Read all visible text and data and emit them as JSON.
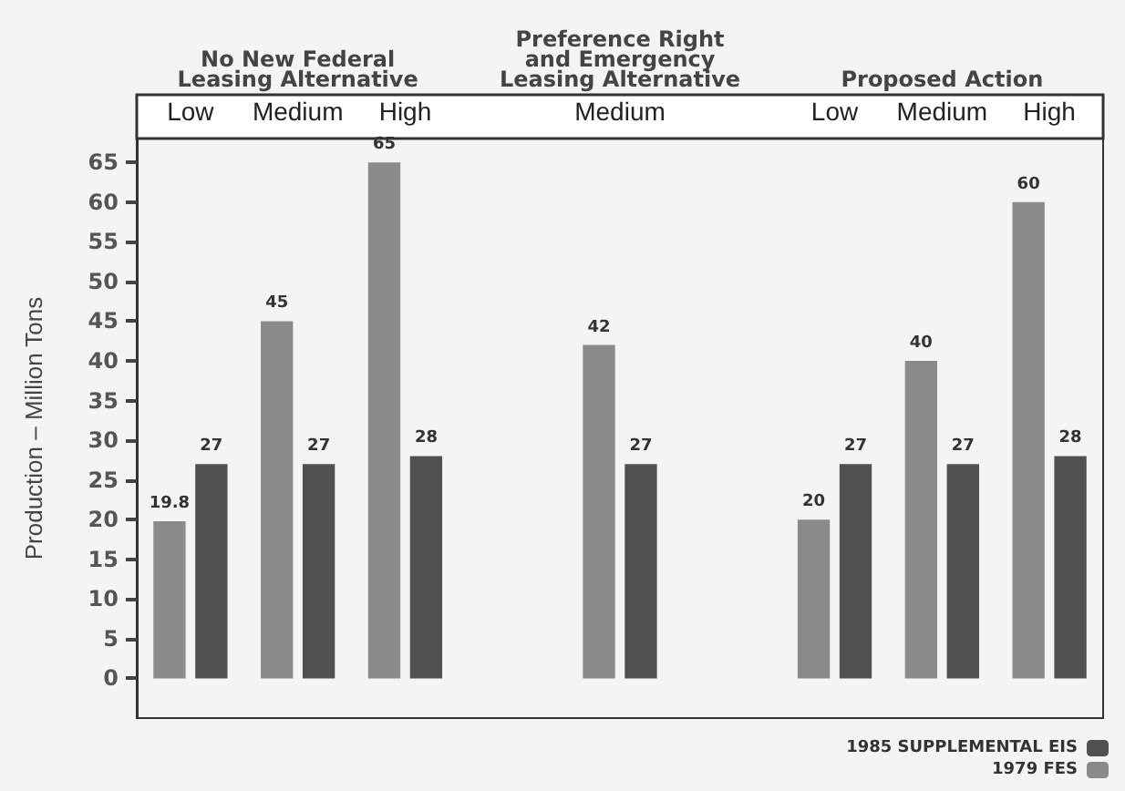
{
  "chart_data": {
    "type": "bar",
    "ylabel": "Production – Million Tons",
    "categories": [
      "Low",
      "Medium",
      "High",
      null,
      "Medium",
      null,
      "Low",
      "Medium",
      "High"
    ],
    "series": [
      {
        "name": "1979 FES",
        "color": "#8a8a8a",
        "values": [
          19.8,
          45,
          65,
          null,
          42,
          null,
          20,
          40,
          60
        ]
      },
      {
        "name": "1985 SUPPLEMENTAL EIS",
        "color": "#505050",
        "values": [
          27,
          27,
          28,
          null,
          27,
          null,
          27,
          27,
          28
        ]
      }
    ],
    "ylim": [
      -5,
      68
    ],
    "yticks": [
      0,
      5,
      10,
      15,
      20,
      25,
      30,
      35,
      40,
      45,
      50,
      55,
      60,
      65
    ],
    "annotations": [
      "No New Federal\nLeasing Alternative",
      "Preference Right\nand Emergency\nLeasing Alternative",
      "Proposed Action"
    ],
    "data_labels": true,
    "legend": "bottom right",
    "grid": false
  }
}
